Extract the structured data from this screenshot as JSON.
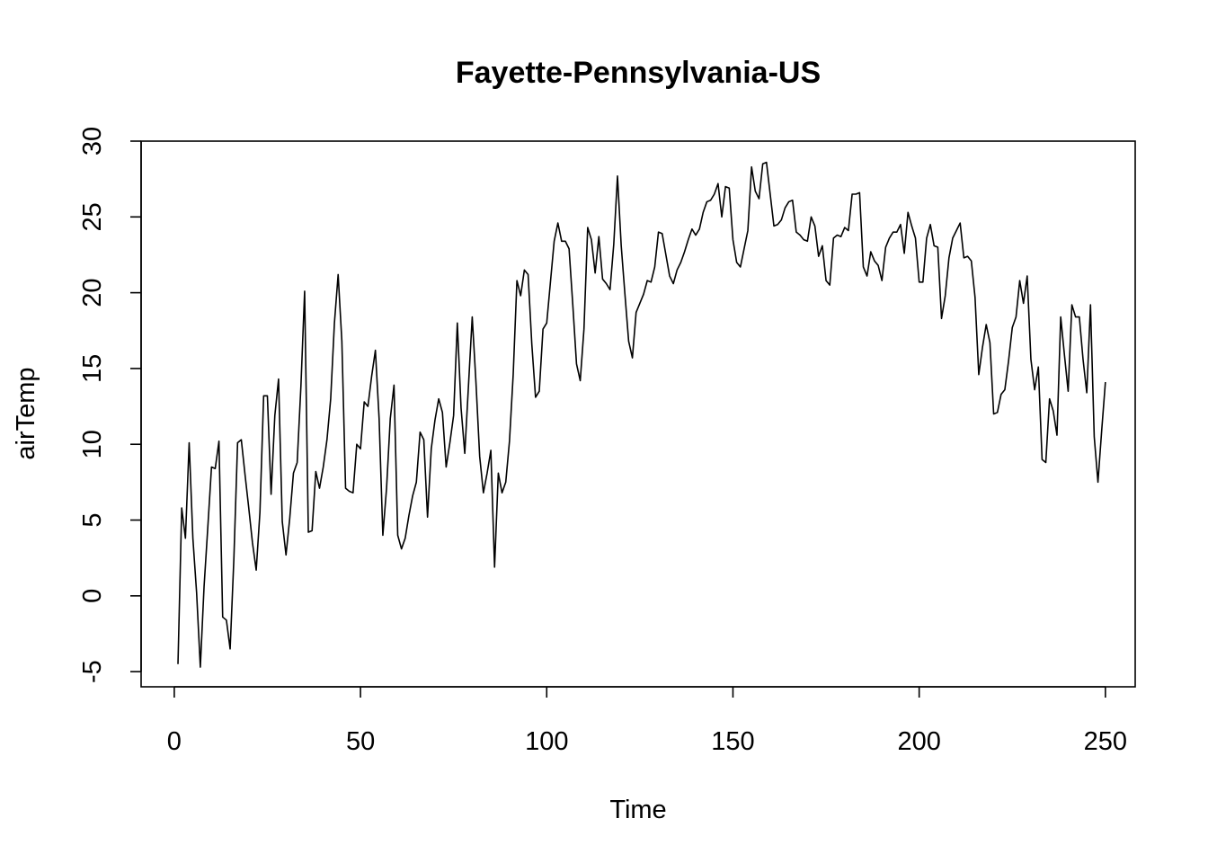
{
  "chart_data": {
    "type": "line",
    "title": "Fayette-Pennsylvania-US",
    "xlabel": "Time",
    "ylabel": "airTemp",
    "xlim": [
      -8.9,
      258
    ],
    "ylim": [
      -6,
      30
    ],
    "x_ticks": [
      0,
      50,
      100,
      150,
      200,
      250
    ],
    "y_ticks": [
      -5,
      0,
      5,
      10,
      15,
      20,
      25,
      30
    ],
    "grid": false,
    "legend": "none",
    "line_color": "#000000",
    "series": [
      {
        "x_start": 1,
        "x_step": 1,
        "values": [
          -4.5,
          5.8,
          3.8,
          10.1,
          3.8,
          0.2,
          -4.7,
          0.6,
          4.5,
          8.5,
          8.4,
          10.2,
          -1.4,
          -1.6,
          -3.5,
          2.4,
          10.1,
          10.3,
          8.0,
          5.8,
          3.5,
          1.7,
          5.5,
          13.2,
          13.2,
          6.7,
          11.9,
          14.3,
          4.9,
          2.7,
          5.1,
          8.1,
          8.8,
          13.8,
          20.1,
          4.2,
          4.3,
          8.2,
          7.1,
          8.5,
          10.3,
          13.0,
          18.0,
          21.2,
          16.8,
          7.1,
          6.9,
          6.8,
          10.0,
          9.7,
          12.8,
          12.5,
          14.5,
          16.2,
          11.7,
          4.0,
          7.1,
          11.7,
          13.9,
          4.0,
          3.1,
          3.8,
          5.3,
          6.6,
          7.5,
          10.8,
          10.3,
          5.2,
          9.7,
          11.6,
          13.0,
          12.1,
          8.5,
          10.1,
          11.9,
          18.0,
          12.4,
          9.4,
          13.9,
          18.4,
          14.1,
          9.2,
          6.8,
          8.1,
          9.6,
          1.9,
          8.1,
          6.8,
          7.5,
          10.2,
          14.6,
          20.8,
          19.8,
          21.5,
          21.2,
          16.6,
          13.1,
          13.5,
          17.6,
          18.0,
          20.7,
          23.4,
          24.6,
          23.4,
          23.4,
          22.9,
          19.2,
          15.3,
          14.2,
          17.6,
          24.3,
          23.5,
          21.3,
          23.7,
          20.9,
          20.6,
          20.2,
          23.2,
          27.7,
          23.1,
          19.9,
          16.8,
          15.7,
          18.7,
          19.3,
          19.9,
          20.8,
          20.7,
          21.7,
          24.0,
          23.9,
          22.5,
          21.1,
          20.6,
          21.5,
          22.0,
          22.7,
          23.5,
          24.2,
          23.8,
          24.2,
          25.3,
          26.0,
          26.1,
          26.5,
          27.2,
          25.0,
          27.0,
          26.9,
          23.5,
          22.0,
          21.7,
          22.9,
          24.1,
          28.3,
          26.7,
          26.2,
          28.5,
          28.6,
          26.5,
          24.4,
          24.5,
          24.8,
          25.6,
          26.0,
          26.1,
          24.0,
          23.8,
          23.5,
          23.4,
          25.0,
          24.4,
          22.4,
          23.1,
          20.8,
          20.5,
          23.6,
          23.8,
          23.7,
          24.3,
          24.1,
          26.5,
          26.5,
          26.6,
          21.7,
          21.1,
          22.7,
          22.1,
          21.8,
          20.8,
          23.0,
          23.6,
          24.0,
          24.0,
          24.5,
          22.6,
          25.3,
          24.4,
          23.6,
          20.7,
          20.7,
          23.6,
          24.5,
          23.1,
          23.0,
          18.3,
          19.8,
          22.3,
          23.6,
          24.1,
          24.6,
          22.3,
          22.4,
          22.1,
          19.7,
          14.6,
          16.4,
          17.9,
          16.7,
          12.0,
          12.1,
          13.3,
          13.6,
          15.5,
          17.7,
          18.4,
          20.8,
          19.3,
          21.1,
          15.6,
          13.6,
          15.1,
          9.0,
          8.8,
          13.0,
          12.2,
          10.6,
          18.4,
          15.9,
          13.5,
          19.2,
          18.4,
          18.4,
          15.6,
          13.4,
          19.2,
          10.5,
          7.5,
          10.9,
          14.1
        ]
      }
    ]
  }
}
